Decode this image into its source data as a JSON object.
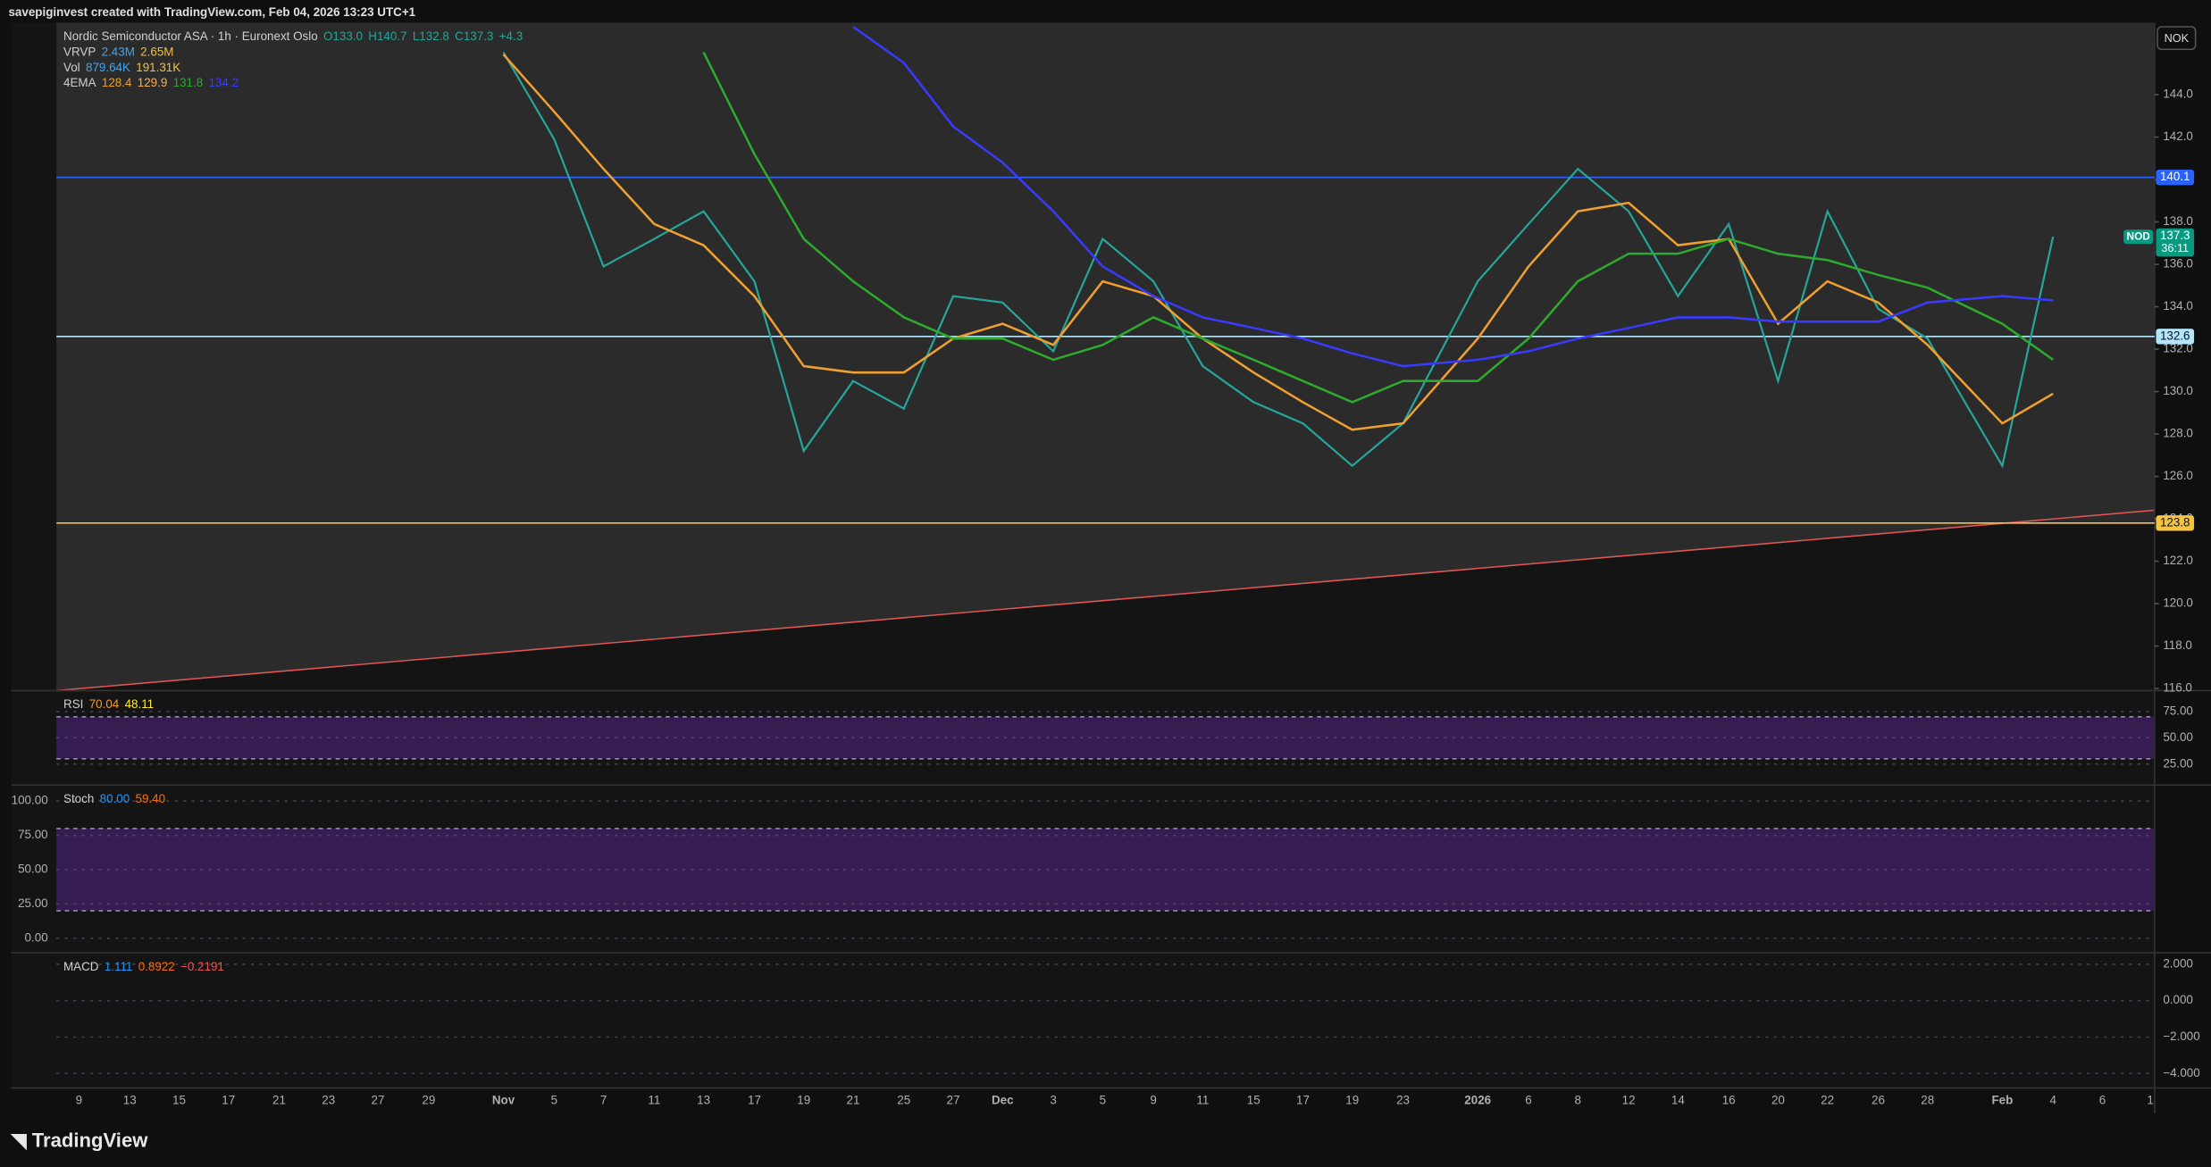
{
  "header": {
    "text": "savepiginvest created with TradingView.com, Feb 04, 2026 13:23 UTC+1"
  },
  "legend": {
    "symbol": "Nordic Semiconductor ASA · 1h · Euronext Oslo",
    "ohlc": [
      "O133.0",
      "H140.7",
      "L132.8",
      "C137.3",
      "+4.3"
    ],
    "rows": [
      {
        "label": "VRVP",
        "values": [
          "2.43M",
          "2.65M"
        ],
        "colors": [
          "#42a5f5",
          "#f0c040"
        ]
      },
      {
        "label": "Vol",
        "values": [
          "879.64K",
          "191.31K"
        ],
        "colors": [
          "#42a5f5",
          "#f0c040"
        ]
      },
      {
        "label": "4EMA",
        "values": [
          "128.4",
          "129.9",
          "131.8",
          "134.2"
        ],
        "colors": [
          "#f0a030",
          "#f5b060",
          "#2eaa2e",
          "#3a3aff"
        ]
      }
    ]
  },
  "chart_data": {
    "type": "line",
    "categories": [
      "9",
      "13",
      "15",
      "17",
      "21",
      "23",
      "27",
      "29",
      "Nov",
      "5",
      "7",
      "11",
      "13",
      "17",
      "19",
      "21",
      "25",
      "27",
      "Dec",
      "3",
      "5",
      "9",
      "11",
      "15",
      "17",
      "19",
      "23",
      "2026",
      "6",
      "8",
      "12",
      "14",
      "16",
      "20",
      "22",
      "26",
      "28",
      "Feb",
      "4",
      "6",
      "1"
    ],
    "series": [
      {
        "color": "#26a69a",
        "values": [
          null,
          null,
          null,
          null,
          null,
          null,
          null,
          null,
          146.0,
          141.9,
          135.9,
          137.2,
          138.5,
          135.2,
          127.2,
          130.5,
          129.2,
          134.5,
          134.2,
          131.9,
          137.2,
          135.2,
          131.2,
          129.5,
          128.5,
          126.5,
          128.5,
          135.2,
          137.9,
          140.5,
          138.5,
          134.5,
          137.9,
          130.5,
          138.5,
          133.9,
          132.5,
          126.5,
          137.3,
          null,
          null
        ]
      },
      {
        "color": "#f0a030",
        "values": [
          null,
          null,
          null,
          null,
          null,
          null,
          null,
          null,
          145.9,
          143.2,
          140.5,
          137.9,
          136.9,
          134.5,
          131.2,
          130.9,
          130.9,
          132.5,
          133.2,
          132.2,
          135.2,
          134.5,
          132.5,
          130.9,
          129.5,
          128.2,
          128.5,
          132.5,
          135.9,
          138.5,
          138.9,
          136.9,
          137.2,
          133.2,
          135.2,
          134.2,
          132.2,
          128.5,
          129.9,
          null,
          null
        ]
      },
      {
        "color": "#2eaa2e",
        "values": [
          null,
          null,
          null,
          null,
          null,
          null,
          null,
          null,
          null,
          null,
          null,
          null,
          146.0,
          141.2,
          137.2,
          135.2,
          133.5,
          132.5,
          132.5,
          131.5,
          132.2,
          133.5,
          132.5,
          131.5,
          130.5,
          129.5,
          130.5,
          130.5,
          132.5,
          135.2,
          136.5,
          136.5,
          137.2,
          136.5,
          136.2,
          135.5,
          134.9,
          133.2,
          131.5,
          null,
          null
        ]
      },
      {
        "color": "#3a3aff",
        "values": [
          null,
          null,
          null,
          null,
          null,
          null,
          null,
          null,
          null,
          null,
          null,
          null,
          null,
          null,
          null,
          147.2,
          145.5,
          142.5,
          140.8,
          138.5,
          135.9,
          134.5,
          133.5,
          133.0,
          132.5,
          131.8,
          131.2,
          131.5,
          131.9,
          132.5,
          133.0,
          133.5,
          133.5,
          133.3,
          133.3,
          133.3,
          134.2,
          134.5,
          134.3,
          null,
          null
        ]
      }
    ],
    "ylim": [
      115.9,
      147.4
    ],
    "yticks": [
      {
        "value": 116,
        "label": "116.0"
      },
      {
        "value": 118,
        "label": "118.0"
      },
      {
        "value": 120,
        "label": "120.0"
      },
      {
        "value": 122,
        "label": "122.0"
      },
      {
        "value": 124,
        "label": "124.0"
      },
      {
        "value": 126,
        "label": "126.0"
      },
      {
        "value": 128,
        "label": "128.0"
      },
      {
        "value": 130,
        "label": "130.0"
      },
      {
        "value": 132,
        "label": "132.0"
      },
      {
        "value": 134,
        "label": "134.0"
      },
      {
        "value": 136,
        "label": "136.0"
      },
      {
        "value": 138,
        "label": "138.0"
      },
      {
        "value": 140,
        "label": "140.0"
      },
      {
        "value": 142,
        "label": "142.0"
      },
      {
        "value": 144,
        "label": "144.0"
      }
    ],
    "levels": [
      {
        "value": 140.1,
        "color": "#2962ff",
        "text_color": "#ffffff"
      },
      {
        "value": 132.6,
        "color": "#b3e5fc",
        "text_color": "#111111"
      },
      {
        "value": 123.8,
        "color": "#f5c242",
        "text_color": "#111111"
      }
    ],
    "currency": "NOK",
    "last": {
      "ticker": "NOD",
      "value": 137.3,
      "countdown": "36:11",
      "color": "#089981"
    }
  },
  "indicators": [
    {
      "name": "RSI",
      "readings": [
        "70.04",
        "48.11"
      ],
      "colors": [
        "#f0a030",
        "#ffeb3b"
      ],
      "ylim": [
        5,
        95
      ],
      "band": [
        30,
        70
      ],
      "yticks": [
        {
          "value": 75,
          "label": "75.00"
        },
        {
          "value": 50,
          "label": "50.00"
        },
        {
          "value": 25,
          "label": "25.00"
        }
      ]
    },
    {
      "name": "Stoch",
      "readings": [
        "80.00",
        "59.40"
      ],
      "colors": [
        "#2196f3",
        "#ff6d00"
      ],
      "ylim": [
        -10.6,
        111.7
      ],
      "band": [
        20,
        80
      ],
      "yticks": [
        {
          "value": 100,
          "label": "100.00"
        },
        {
          "value": 75,
          "label": "75.00"
        },
        {
          "value": 50,
          "label": "50.00"
        },
        {
          "value": 25,
          "label": "25.00"
        },
        {
          "value": 0,
          "label": "0.00"
        }
      ]
    },
    {
      "name": "MACD",
      "readings": [
        "1.111",
        "0.8922",
        "−0.2191"
      ],
      "colors": [
        "#2196f3",
        "#ff6d00",
        "#ef5350"
      ],
      "ylim": [
        -4.8,
        2.63
      ],
      "yticks": [
        {
          "value": 2,
          "label": "2.000"
        },
        {
          "value": 0,
          "label": "0.000"
        },
        {
          "value": -2,
          "label": "−2.000"
        },
        {
          "value": -4,
          "label": "−4.000"
        }
      ]
    }
  ],
  "footer": {
    "brand": "TradingView"
  }
}
